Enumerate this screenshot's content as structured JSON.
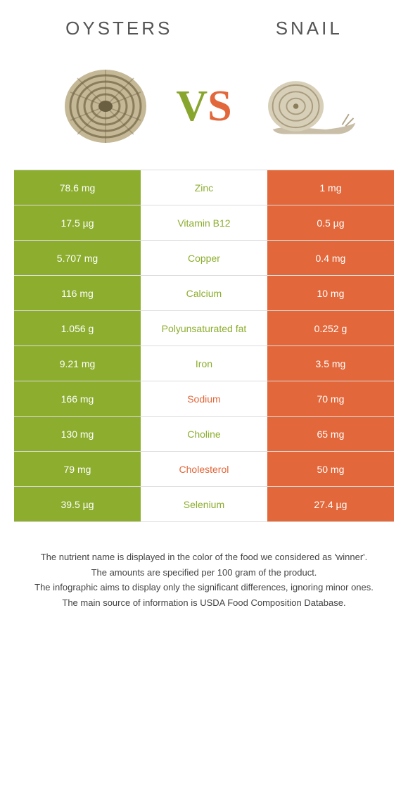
{
  "colors": {
    "oysters": "#8cad2e",
    "snail": "#e2673a",
    "text": "#555555",
    "footer_text": "#444444",
    "bg": "#ffffff",
    "border": "#dddddd"
  },
  "header": {
    "left_title": "OYSTERS",
    "right_title": "SNAIL",
    "vs_v": "V",
    "vs_s": "S"
  },
  "rows": [
    {
      "left": "78.6 mg",
      "mid": "Zinc",
      "right": "1 mg",
      "winner": "oysters"
    },
    {
      "left": "17.5 µg",
      "mid": "Vitamin B12",
      "right": "0.5 µg",
      "winner": "oysters"
    },
    {
      "left": "5.707 mg",
      "mid": "Copper",
      "right": "0.4 mg",
      "winner": "oysters"
    },
    {
      "left": "116 mg",
      "mid": "Calcium",
      "right": "10 mg",
      "winner": "oysters"
    },
    {
      "left": "1.056 g",
      "mid": "Polyunsaturated fat",
      "right": "0.252 g",
      "winner": "oysters"
    },
    {
      "left": "9.21 mg",
      "mid": "Iron",
      "right": "3.5 mg",
      "winner": "oysters"
    },
    {
      "left": "166 mg",
      "mid": "Sodium",
      "right": "70 mg",
      "winner": "snail"
    },
    {
      "left": "130 mg",
      "mid": "Choline",
      "right": "65 mg",
      "winner": "oysters"
    },
    {
      "left": "79 mg",
      "mid": "Cholesterol",
      "right": "50 mg",
      "winner": "snail"
    },
    {
      "left": "39.5 µg",
      "mid": "Selenium",
      "right": "27.4 µg",
      "winner": "oysters"
    }
  ],
  "footer": {
    "line1": "The nutrient name is displayed in the color of the food we considered as 'winner'.",
    "line2": "The amounts are specified per 100 gram of the product.",
    "line3": "The infographic aims to display only the significant differences, ignoring minor ones.",
    "line4": "The main source of information is USDA Food Composition Database."
  }
}
